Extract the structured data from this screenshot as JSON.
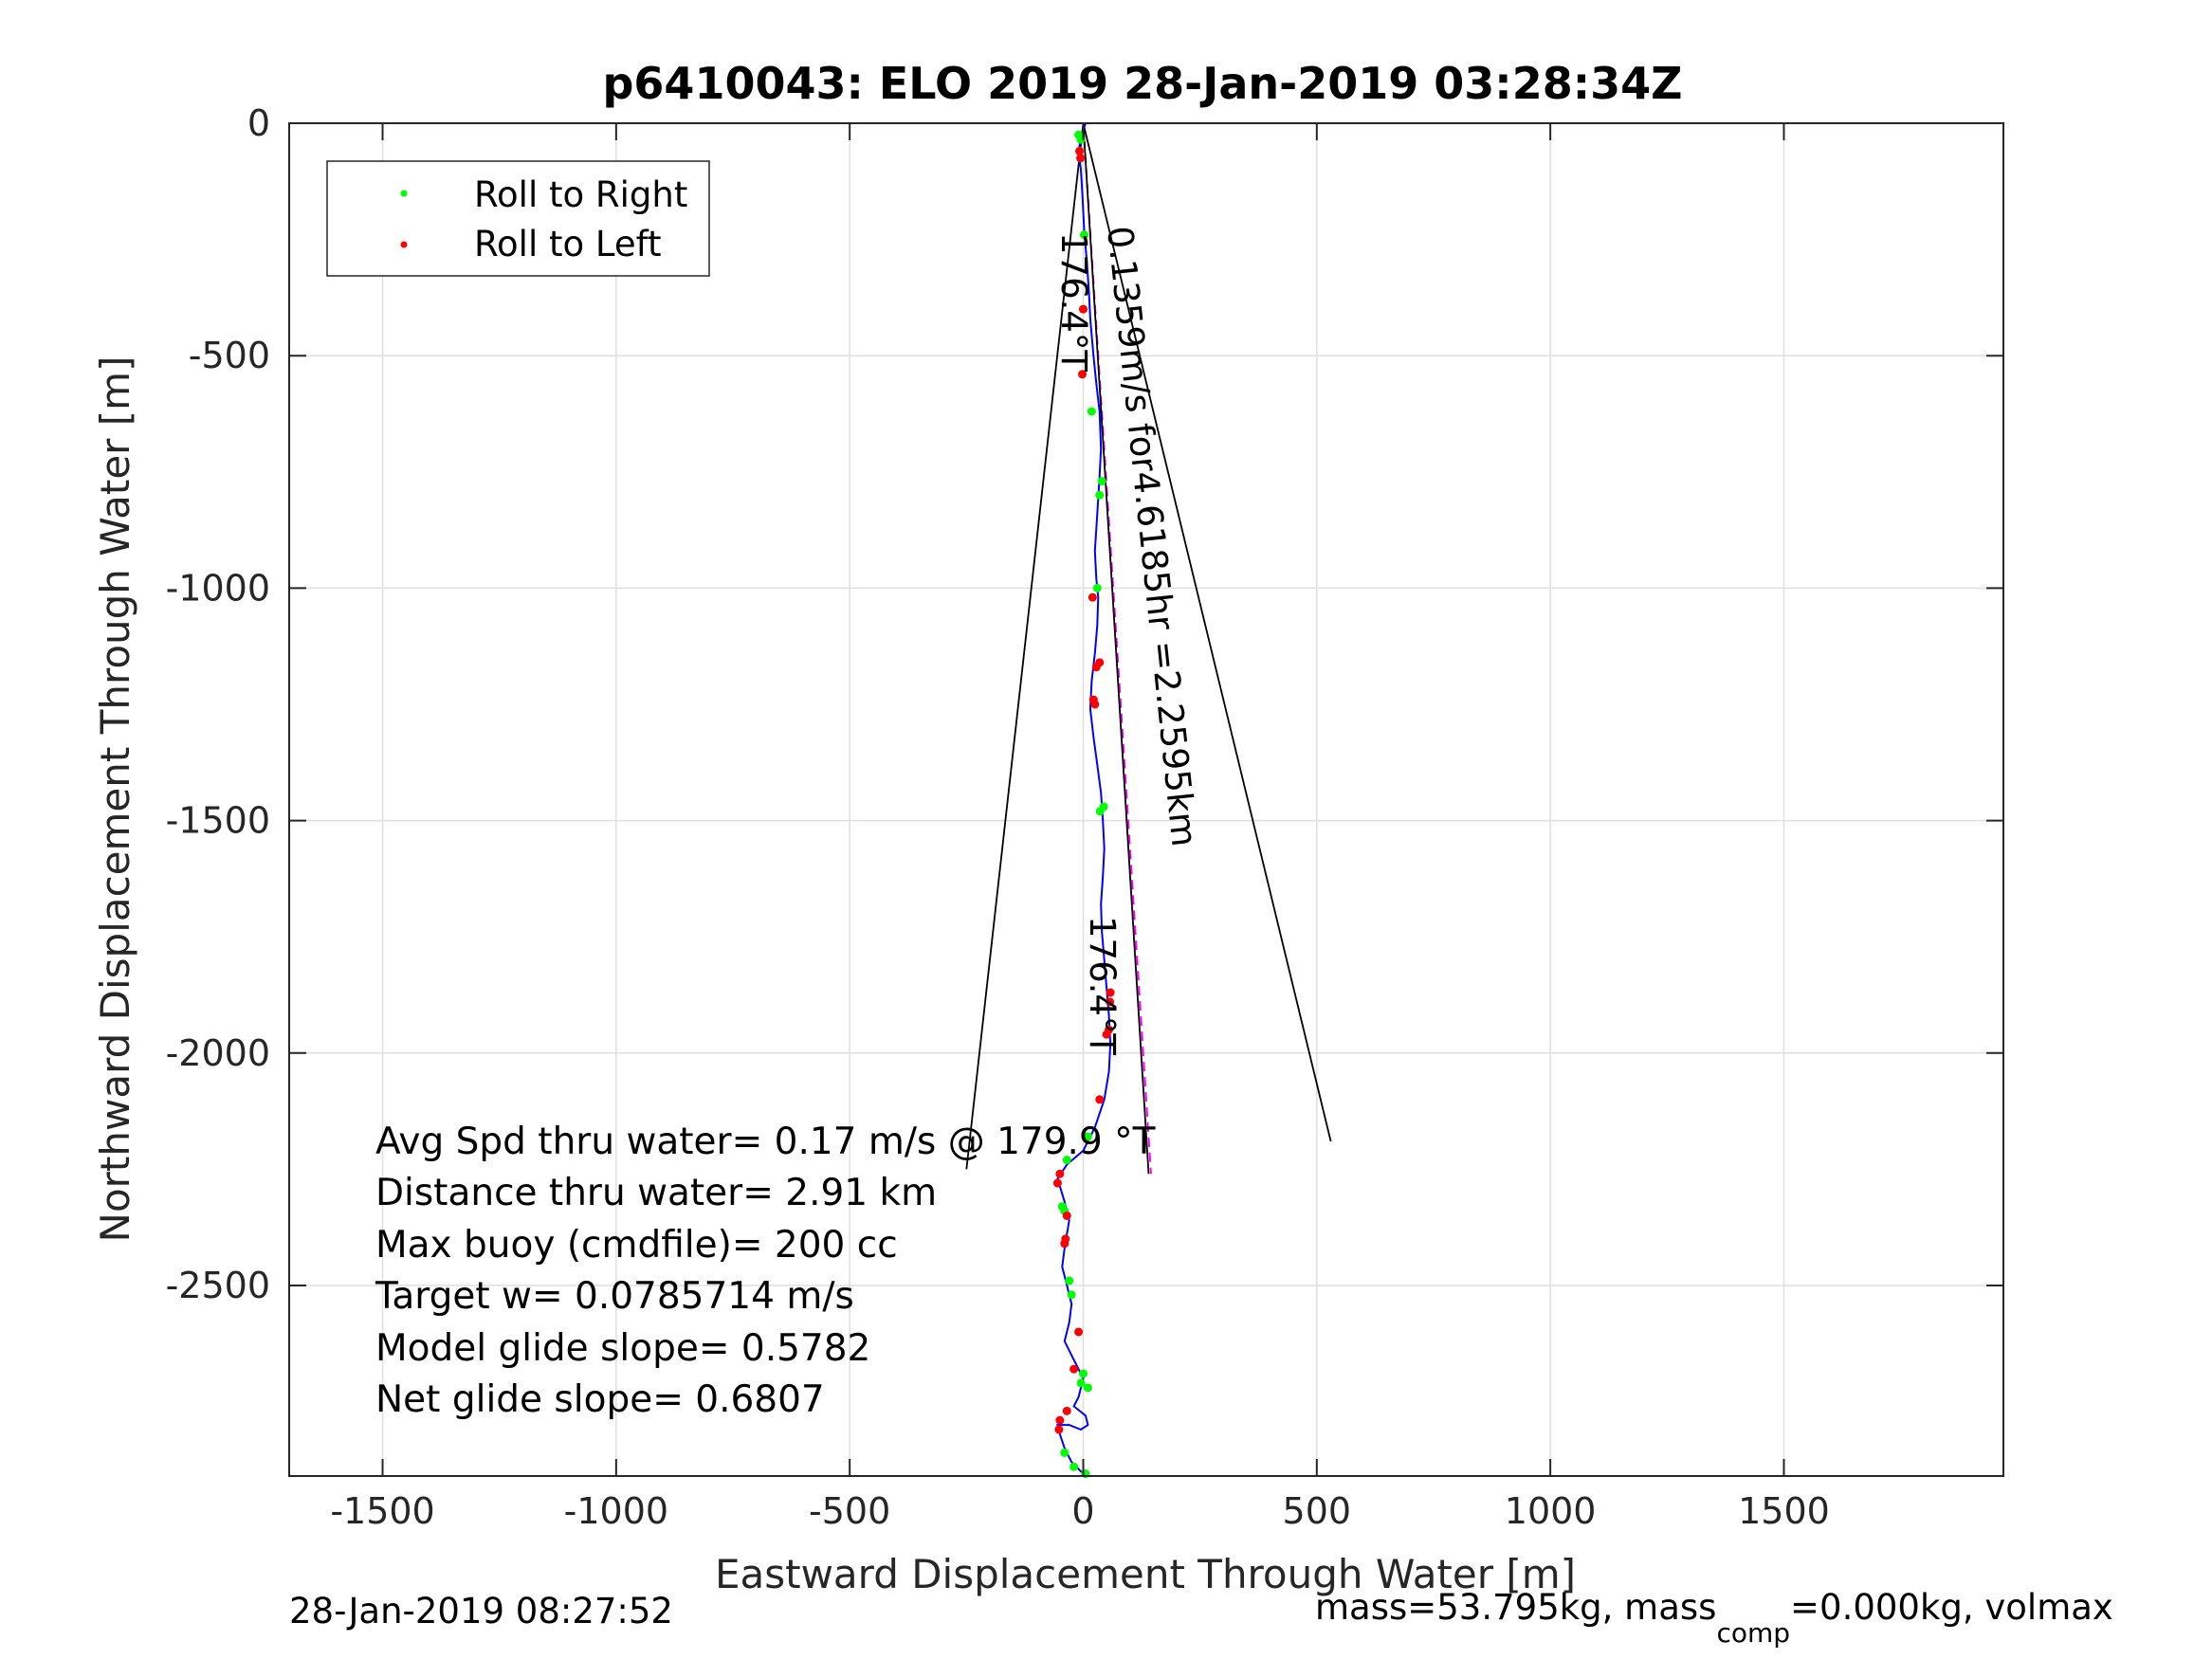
{
  "chart_data": {
    "type": "line",
    "title": "p6410043: ELO 2019 28-Jan-2019 03:28:34Z",
    "xlabel": "Eastward Displacement Through Water [m]",
    "ylabel": "Northward Displacement Through Water [m]",
    "xlim": [
      -1700,
      1970
    ],
    "ylim": [
      -2910,
      0
    ],
    "xticks": [
      -1500,
      -1000,
      -500,
      0,
      500,
      1000,
      1500
    ],
    "yticks": [
      0,
      -500,
      -1000,
      -1500,
      -2000,
      -2500
    ],
    "xtick_labels": [
      "-1500",
      "-1000",
      "-500",
      "0",
      "500",
      "1000",
      "1500"
    ],
    "ytick_labels": [
      "0",
      "-500",
      "-1000",
      "-1500",
      "-2000",
      "-2500"
    ],
    "grid": true,
    "legend": {
      "placement": "top-left",
      "entries": [
        {
          "label": "Roll to Right",
          "color": "#00ff00"
        },
        {
          "label": "Roll to Left",
          "color": "#ff0000"
        }
      ]
    },
    "series": [
      {
        "type": "line",
        "color": "#0000ff",
        "x": [
          5,
          -5,
          -10,
          -5,
          -2,
          2,
          8,
          12,
          15,
          22,
          28,
          35,
          38,
          35,
          30,
          25,
          28,
          32,
          30,
          25,
          18,
          15,
          22,
          30,
          38,
          42,
          45,
          42,
          38,
          40,
          45,
          50,
          55,
          58,
          55,
          45,
          25,
          0,
          -35,
          -55,
          -40,
          -30,
          -40,
          -45,
          -35,
          -25,
          -30,
          -40,
          -20,
          0,
          -10,
          -20,
          5,
          10,
          -5,
          -30,
          -55,
          -50,
          -40,
          -25,
          -5,
          10
        ],
        "y": [
          0,
          -30,
          -60,
          -100,
          -150,
          -230,
          -300,
          -360,
          -420,
          -500,
          -560,
          -620,
          -700,
          -760,
          -840,
          -920,
          -980,
          -1020,
          -1080,
          -1140,
          -1200,
          -1260,
          -1320,
          -1380,
          -1440,
          -1500,
          -1560,
          -1620,
          -1680,
          -1740,
          -1800,
          -1860,
          -1920,
          -1980,
          -2040,
          -2100,
          -2160,
          -2210,
          -2240,
          -2270,
          -2320,
          -2360,
          -2420,
          -2460,
          -2500,
          -2540,
          -2580,
          -2620,
          -2660,
          -2700,
          -2740,
          -2760,
          -2780,
          -2800,
          -2810,
          -2800,
          -2800,
          -2820,
          -2850,
          -2880,
          -2900,
          -2910
        ]
      },
      {
        "name": "Roll to Right",
        "type": "scatter",
        "color": "#00ff00",
        "x": [
          -10,
          -5,
          2,
          18,
          40,
          35,
          30,
          36,
          44,
          10,
          -35,
          -45,
          -40,
          -30,
          -25,
          0,
          -5,
          10,
          -40,
          -20,
          5
        ],
        "y": [
          -25,
          -35,
          -240,
          -620,
          -770,
          -800,
          -1000,
          -1480,
          -1470,
          -2180,
          -2230,
          -2330,
          -2340,
          -2490,
          -2520,
          -2690,
          -2710,
          -2720,
          -2860,
          -2890,
          -2905
        ]
      },
      {
        "name": "Roll to Left",
        "type": "scatter",
        "color": "#ff0000",
        "x": [
          -8,
          -6,
          0,
          -2,
          20,
          35,
          28,
          22,
          25,
          58,
          57,
          55,
          50,
          35,
          -50,
          -55,
          -35,
          -38,
          -40,
          -10,
          -20,
          -35,
          -50,
          -52
        ],
        "y": [
          -60,
          -75,
          -400,
          -540,
          -1020,
          -1160,
          -1170,
          -1240,
          -1250,
          -1870,
          -1890,
          -1950,
          -1960,
          -2100,
          -2260,
          -2280,
          -2350,
          -2400,
          -2410,
          -2600,
          -2680,
          -2770,
          -2790,
          -2810
        ]
      }
    ],
    "annotations": {
      "stats": [
        "Avg Spd thru water=  0.17 m/s @ 179.9 °T",
        "Distance thru water=  2.91 km",
        "Max buoy (cmdfile)= 200 cc",
        "Target w= 0.0785714 m/s",
        "Model glide slope= 0.5782",
        "Net glide slope= 0.6807"
      ],
      "heading_label_1": "176.4°T",
      "current_label": "0.1359m/s for4.6185hr =2.2595km",
      "heading_label_2": "176.4°T"
    },
    "footer_left": "28-Jan-2019 08:27:52",
    "footer_right_prefix": "mass=53.795kg, mass",
    "footer_right_sub": "comp",
    "footer_right_suffix": "=0.000kg, volmax"
  }
}
